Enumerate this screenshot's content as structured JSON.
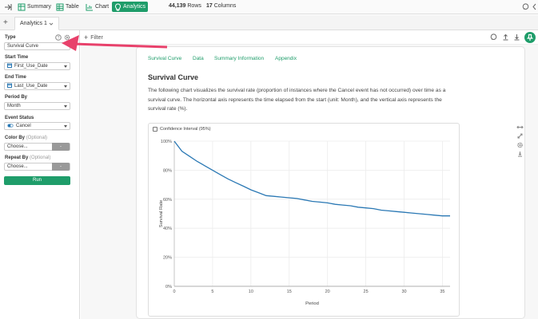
{
  "topbar": {
    "summary_label": "Summary",
    "table_label": "Table",
    "chart_label": "Chart",
    "analytics_label": "Analytics",
    "rows_count": "44,139",
    "rows_label": "Rows",
    "columns_count": "17",
    "columns_label": "Columns"
  },
  "tabbar": {
    "add_label": "+",
    "tab_label": "Analytics 1"
  },
  "sidebar": {
    "type_label": "Type",
    "type_value": "Survival Curve",
    "start_time_label": "Start Time",
    "start_time_value": "First_Use_Date",
    "end_time_label": "End Time",
    "end_time_value": "Last_Use_Date",
    "period_by_label": "Period By",
    "period_by_value": "Month",
    "event_status_label": "Event Status",
    "event_status_value": "Cancel",
    "color_by_label": "Color By",
    "color_by_optional": "(Optional)",
    "color_by_value": "Choose...",
    "repeat_by_label": "Repeat By",
    "repeat_by_optional": "(Optional)",
    "repeat_by_value": "Choose...",
    "dash_label": "-",
    "run_label": "Run"
  },
  "filterbar": {
    "filter_label": "Filter"
  },
  "card": {
    "tabs": [
      "Survival Curve",
      "Data",
      "Summary Information",
      "Appendix"
    ],
    "title": "Survival Curve",
    "description": "The following chart visualizes the survival rate (proportion of instances where the Cancel event has not occurred) over time as a survival curve. The horizontal axis represents the time elapsed from the start (unit: Month), and the vertical axis represents the survival rate (%).",
    "ci_label": "Confidence Interval (95%)"
  },
  "colors": {
    "accent": "#1f9d6a",
    "line": "#2a78b4",
    "arrow": "#e8416b"
  },
  "chart_data": {
    "type": "line",
    "xlabel": "Period",
    "ylabel": "Survival Rate",
    "xlim": [
      0,
      36
    ],
    "ylim": [
      0,
      100
    ],
    "x_ticks": [
      0,
      5,
      10,
      15,
      20,
      25,
      30,
      35
    ],
    "y_ticks": [
      "0%",
      "20%",
      "40%",
      "60%",
      "80%",
      "100%"
    ],
    "grid": true,
    "series": [
      {
        "x": [
          0,
          1,
          2,
          3,
          4,
          5,
          6,
          7,
          8,
          9,
          10,
          11,
          12,
          13,
          14,
          15,
          16,
          17,
          18,
          19,
          20,
          21,
          22,
          23,
          24,
          25,
          26,
          27,
          28,
          29,
          30,
          31,
          32,
          33,
          34,
          35,
          36
        ],
        "y": [
          100,
          93,
          89.5,
          86,
          83,
          80,
          77,
          74,
          71.5,
          69,
          66.5,
          64.5,
          62.5,
          62,
          61.5,
          61,
          60.5,
          59.5,
          58.5,
          58,
          57.5,
          56.5,
          56,
          55.5,
          54.5,
          54,
          53.5,
          52.5,
          52,
          51.5,
          51,
          50.5,
          50,
          49.5,
          49,
          48.5,
          48.5
        ]
      }
    ]
  }
}
